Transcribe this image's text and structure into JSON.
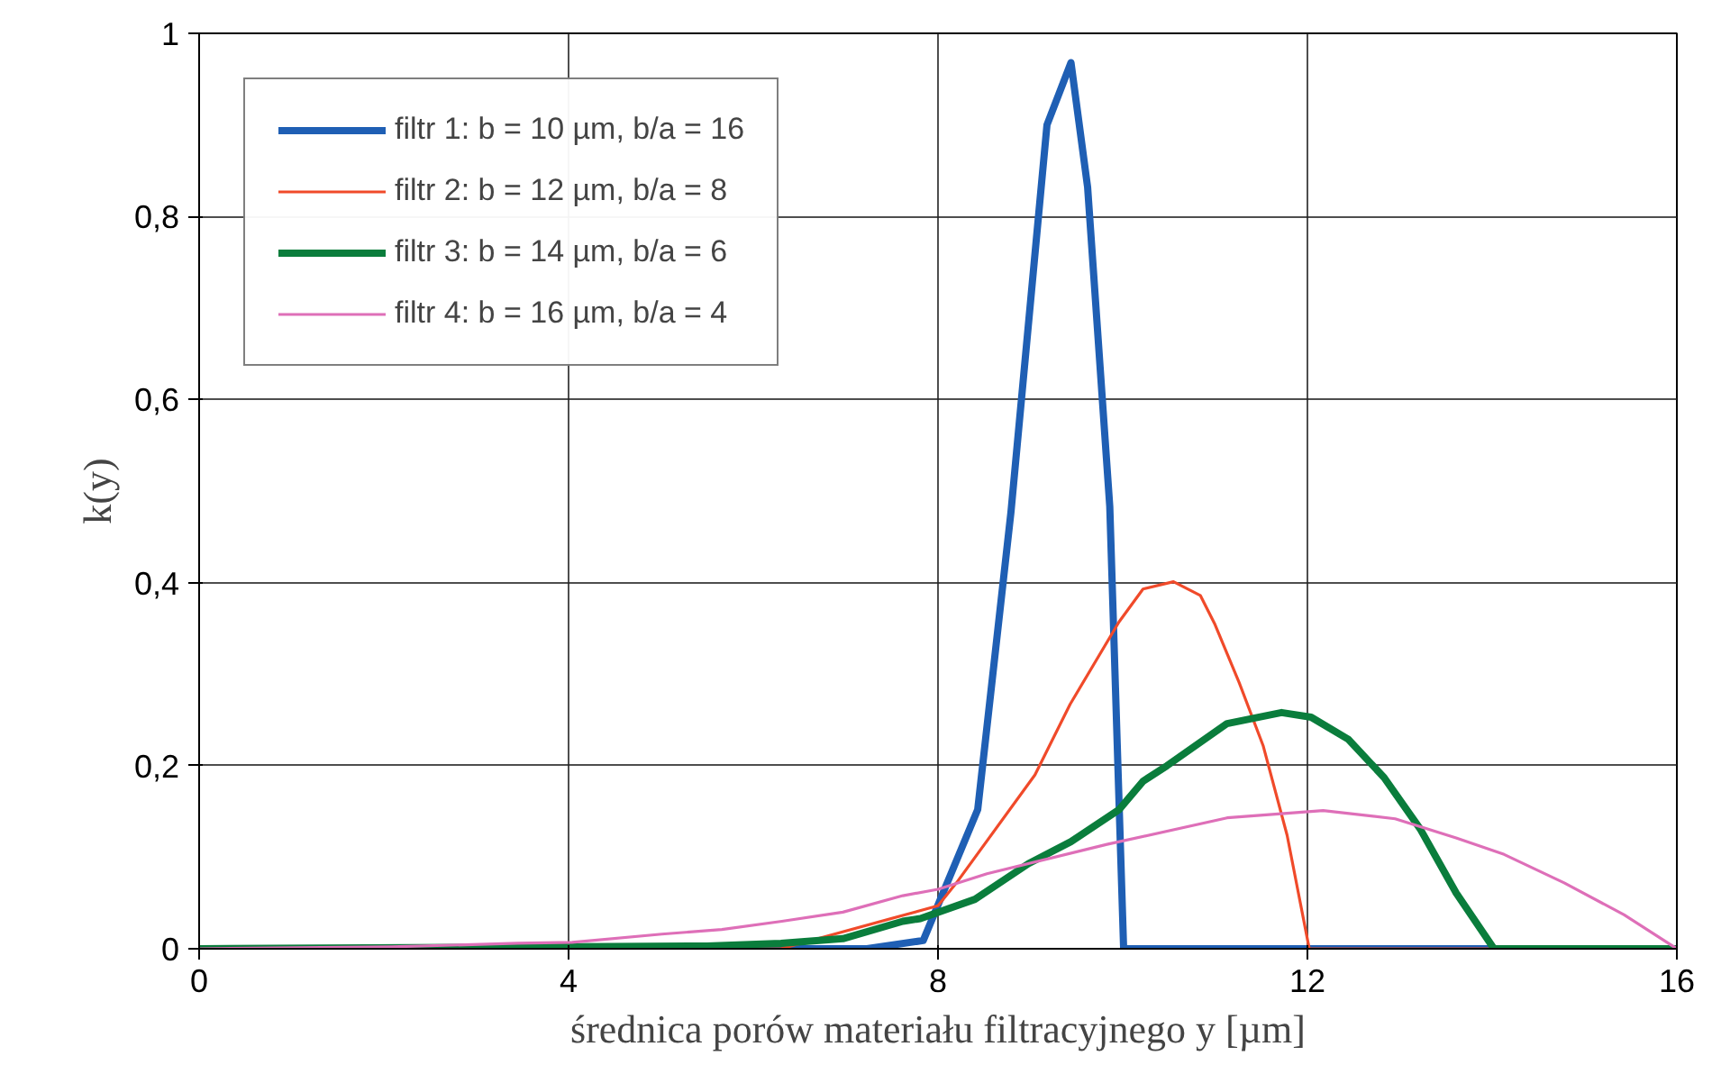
{
  "chart_data": {
    "type": "line",
    "xlabel": "średnica porów materiału filtracyjnego y [µm]",
    "ylabel": "k(y)",
    "xlim": [
      0,
      16
    ],
    "ylim": [
      0,
      1
    ],
    "xticks": [
      0,
      4,
      8,
      12,
      16
    ],
    "yticks": [
      0,
      {
        "value": 0.2,
        "label": "0,2"
      },
      {
        "value": 0.4,
        "label": "0,4"
      },
      {
        "value": 0.6,
        "label": "0,6"
      },
      {
        "value": 0.8,
        "label": "0,8"
      },
      1
    ],
    "grid": true,
    "legend": "top left",
    "marker": "none",
    "line_style": "solid",
    "series": [
      {
        "name": "filtr 1: b = 10 µm, b/a = 16",
        "color": "#1f5fb4",
        "x": [
          0,
          7.23,
          7.84,
          8.43,
          8.79,
          9.18,
          9.44,
          9.62,
          9.86,
          10.01,
          16
        ],
        "values": [
          0,
          0,
          0.009,
          0.152,
          0.477,
          0.9,
          0.968,
          0.832,
          0.483,
          0,
          0
        ]
      },
      {
        "name": "filtr 2: b = 12 µm, b/a = 8",
        "color": "#f04a2a",
        "x": [
          0,
          6.3,
          8.0,
          8.2,
          9.05,
          9.43,
          9.96,
          10.22,
          10.55,
          10.84,
          11.0,
          11.26,
          11.52,
          11.78,
          12.02,
          16
        ],
        "values": [
          0,
          0,
          0.047,
          0.072,
          0.19,
          0.267,
          0.357,
          0.393,
          0.401,
          0.386,
          0.354,
          0.291,
          0.222,
          0.124,
          0,
          0
        ]
      },
      {
        "name": "filtr 3: b = 14 µm, b/a = 6",
        "color": "#0a7d3c",
        "x": [
          0,
          5.5,
          6.3,
          6.97,
          7.62,
          7.81,
          8.4,
          8.98,
          9.44,
          9.96,
          10.22,
          10.48,
          11.13,
          11.72,
          12.04,
          12.44,
          12.83,
          13.22,
          13.61,
          14.02,
          16
        ],
        "values": [
          0,
          0.003,
          0.006,
          0.011,
          0.03,
          0.033,
          0.054,
          0.093,
          0.117,
          0.152,
          0.183,
          0.2,
          0.246,
          0.258,
          0.253,
          0.229,
          0.187,
          0.131,
          0.061,
          0,
          0
        ]
      },
      {
        "name": "filtr 4: b = 16 µm, b/a = 4",
        "color": "#de6fb8",
        "x": [
          0,
          2.08,
          3.45,
          4.04,
          5.01,
          5.66,
          6.31,
          6.97,
          7.62,
          8.0,
          8.53,
          9.83,
          11.13,
          12.17,
          12.95,
          13.61,
          14.13,
          14.78,
          15.43,
          16.0
        ],
        "values": [
          0,
          0.002,
          0.006,
          0.007,
          0.016,
          0.021,
          0.03,
          0.04,
          0.058,
          0.065,
          0.082,
          0.114,
          0.143,
          0.151,
          0.142,
          0.121,
          0.103,
          0.072,
          0.037,
          0
        ]
      }
    ]
  }
}
